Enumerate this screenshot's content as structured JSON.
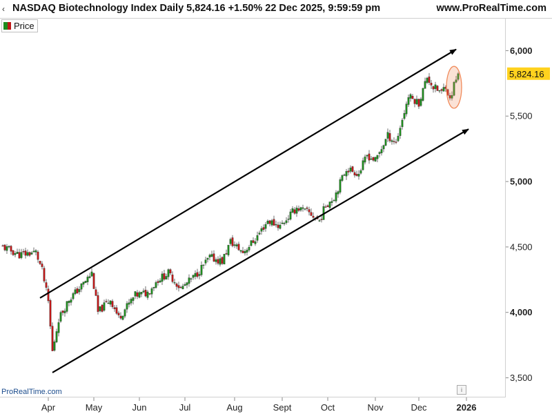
{
  "header": {
    "title": "NASDAQ Biotechnology Index Daily 5,824.16 +1.50% 22 Dec 2025, 9:59:59 pm",
    "site": "www.ProRealTime.com",
    "collapse_icon": "chevron-left-icon"
  },
  "legend": {
    "label": "Price",
    "colors": [
      "#1e8c1e",
      "#c01818"
    ]
  },
  "watermark": "ProRealTime.com",
  "info_icon": "info-icon",
  "colors": {
    "up": "#1e8c1e",
    "down": "#c01818",
    "price_tag": "#ffd21e",
    "highlight": "#f08a5a"
  },
  "chart_data": {
    "type": "candlestick",
    "title": "NASDAQ Biotechnology Index Daily 5,824.16 +1.50% 22 Dec 2025, 9:59:59 pm",
    "last_price": 5824.16,
    "last_price_label": "5,824.16",
    "ylim": [
      3350,
      6250
    ],
    "yticks": [
      {
        "value": 3500,
        "label": "3,500"
      },
      {
        "value": 4000,
        "label": "4,000"
      },
      {
        "value": 4500,
        "label": "4,500"
      },
      {
        "value": 5000,
        "label": "5,000"
      },
      {
        "value": 5500,
        "label": "5,500"
      },
      {
        "value": 6000,
        "label": "6,000"
      }
    ],
    "xticks": [
      "Apr",
      "May",
      "Jun",
      "Jul",
      "Aug",
      "Sept",
      "Oct",
      "Nov",
      "Dec",
      "2026"
    ],
    "xticks_bold": [
      "2026"
    ],
    "grid": false,
    "anchors": [
      [
        0,
        4500
      ],
      [
        8,
        4440
      ],
      [
        16,
        4460
      ],
      [
        19,
        4320
      ],
      [
        22,
        4080
      ],
      [
        24,
        3700
      ],
      [
        27,
        3950
      ],
      [
        32,
        4100
      ],
      [
        38,
        4200
      ],
      [
        43,
        4300
      ],
      [
        46,
        4000
      ],
      [
        52,
        4100
      ],
      [
        56,
        3960
      ],
      [
        64,
        4130
      ],
      [
        70,
        4150
      ],
      [
        75,
        4250
      ],
      [
        80,
        4300
      ],
      [
        86,
        4180
      ],
      [
        93,
        4280
      ],
      [
        100,
        4420
      ],
      [
        106,
        4390
      ],
      [
        110,
        4540
      ],
      [
        116,
        4460
      ],
      [
        122,
        4560
      ],
      [
        128,
        4700
      ],
      [
        134,
        4660
      ],
      [
        142,
        4800
      ],
      [
        148,
        4760
      ],
      [
        153,
        4700
      ],
      [
        156,
        4820
      ],
      [
        160,
        4880
      ],
      [
        166,
        5100
      ],
      [
        172,
        5060
      ],
      [
        176,
        5200
      ],
      [
        180,
        5160
      ],
      [
        186,
        5350
      ],
      [
        190,
        5300
      ],
      [
        196,
        5650
      ],
      [
        201,
        5600
      ],
      [
        205,
        5800
      ],
      [
        208,
        5720
      ],
      [
        212,
        5680
      ],
      [
        214,
        5740
      ],
      [
        216,
        5620
      ],
      [
        218,
        5740
      ],
      [
        220,
        5824
      ]
    ],
    "annotations": {
      "channel_upper": {
        "from": [
          18,
          4110
        ],
        "to": [
          219,
          6010
        ]
      },
      "channel_lower": {
        "from": [
          24,
          3540
        ],
        "to": [
          225,
          5400
        ]
      },
      "highlight_ellipse": {
        "from_index": 216,
        "to_index": 220,
        "low": 5560,
        "high": 5880
      }
    }
  }
}
